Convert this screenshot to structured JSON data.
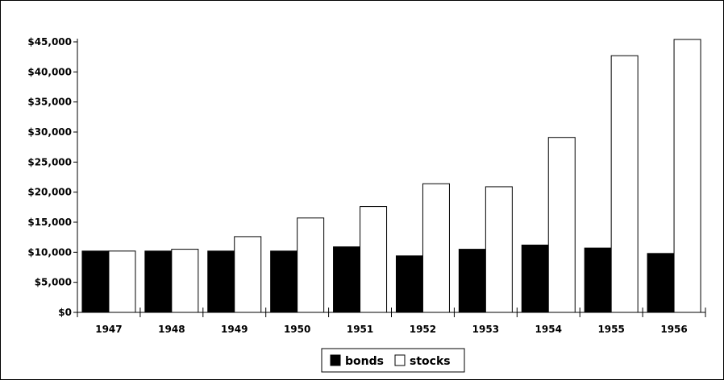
{
  "chart_data": {
    "type": "bar",
    "title": "",
    "xlabel": "",
    "ylabel": "",
    "categories": [
      "1947",
      "1948",
      "1949",
      "1950",
      "1951",
      "1952",
      "1953",
      "1954",
      "1955",
      "1956"
    ],
    "series": [
      {
        "name": "bonds",
        "color": "#000000",
        "values": [
          10200,
          10200,
          10200,
          10200,
          10900,
          9400,
          10500,
          11200,
          10700,
          9800
        ]
      },
      {
        "name": "stocks",
        "color": "#ffffff",
        "values": [
          10200,
          10500,
          12600,
          15700,
          17600,
          21400,
          20900,
          29100,
          42700,
          45400
        ]
      }
    ],
    "ylim": [
      0,
      45000
    ],
    "yticks": [
      0,
      5000,
      10000,
      15000,
      20000,
      25000,
      30000,
      35000,
      40000,
      45000
    ],
    "ytick_labels": [
      "$0",
      "$5,000",
      "$10,000",
      "$15,000",
      "$20,000",
      "$25,000",
      "$30,000",
      "$35,000",
      "$40,000",
      "$45,000"
    ],
    "grid": false,
    "legend_position": "bottom-center"
  }
}
